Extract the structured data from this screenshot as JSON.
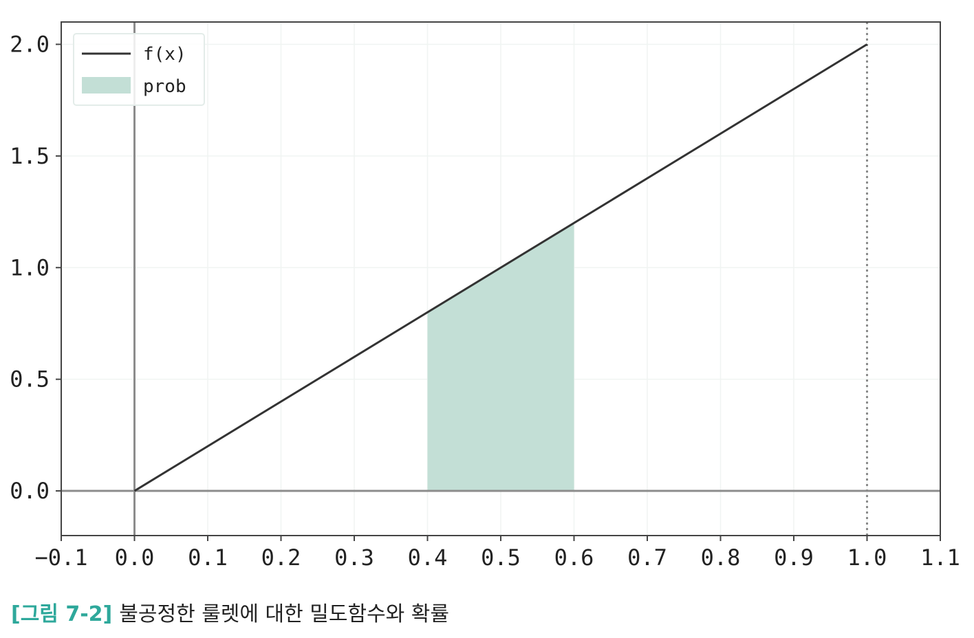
{
  "chart_data": {
    "type": "line",
    "xlim": [
      -0.1,
      1.1
    ],
    "ylim": [
      -0.2,
      2.1
    ],
    "xticks": [
      -0.1,
      0.0,
      0.1,
      0.2,
      0.3,
      0.4,
      0.5,
      0.6,
      0.7,
      0.8,
      0.9,
      1.0,
      1.1
    ],
    "xtick_labels": [
      "−0.1",
      "0.0",
      "0.1",
      "0.2",
      "0.3",
      "0.4",
      "0.5",
      "0.6",
      "0.7",
      "0.8",
      "0.9",
      "1.0",
      "1.1"
    ],
    "yticks": [
      0.0,
      0.5,
      1.0,
      1.5,
      2.0
    ],
    "ytick_labels": [
      "0.0",
      "0.5",
      "1.0",
      "1.5",
      "2.0"
    ],
    "grid": true,
    "legend_position": "top-left",
    "series": [
      {
        "name": "f(x)",
        "kind": "line",
        "x": [
          0.0,
          1.0
        ],
        "y": [
          0.0,
          2.0
        ],
        "color": "#333333"
      }
    ],
    "filled_region": {
      "name": "prob",
      "x_from": 0.4,
      "x_to": 0.6,
      "under": "f(x)",
      "color": "#c3dfd6"
    },
    "reference_lines": [
      {
        "orientation": "vertical",
        "x": 0.0,
        "style": "solid",
        "color": "#8c8c8c"
      },
      {
        "orientation": "horizontal",
        "y": 0.0,
        "style": "solid",
        "color": "#8c8c8c"
      },
      {
        "orientation": "vertical",
        "x": 1.0,
        "style": "dotted",
        "color": "#8c8c8c"
      }
    ]
  },
  "caption": {
    "figure_number": "[그림 7-2]",
    "text": "불공정한 룰렛에 대한 밀도함수와 확률"
  }
}
